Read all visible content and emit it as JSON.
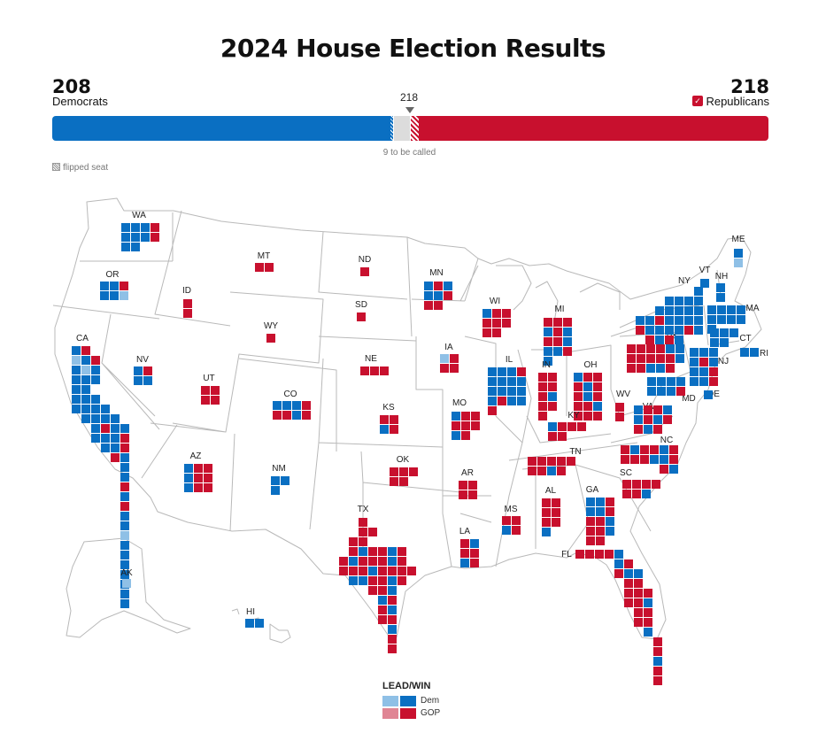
{
  "title": "2024 House Election Results",
  "dem": {
    "seats": "208",
    "label": "Democrats",
    "color": "#0a6fc2",
    "lead_color": "#8fc0e6"
  },
  "gop": {
    "seats": "218",
    "label": "Republicans",
    "color": "#c8102e",
    "lead_color": "#e08594",
    "winner_check": "✓"
  },
  "majority_label": "218",
  "to_be_called": "9 to be called",
  "flipped_note": "flipped seat",
  "legend": {
    "title": "LEAD/WIN",
    "dem": "Dem",
    "gop": "GOP"
  },
  "states": [
    {
      "abbr": "WA",
      "seats": "DDDRDDDRDD"
    },
    {
      "abbr": "OR",
      "seats": "DDRDDL"
    },
    {
      "abbr": "CA",
      "seats": "DRLDRDLDDDDDDDDDDDDDDDDDDRDDDDDRDDRRDDDRDRDDLDDDDDDD"
    },
    {
      "abbr": "NV",
      "seats": "DRDD"
    },
    {
      "abbr": "ID",
      "seats": "RR"
    },
    {
      "abbr": "MT",
      "seats": "RR"
    },
    {
      "abbr": "WY",
      "seats": "R"
    },
    {
      "abbr": "UT",
      "seats": "RRRR"
    },
    {
      "abbr": "CO",
      "seats": "DDDRRRDR"
    },
    {
      "abbr": "AZ",
      "seats": "DRRDRRDRR"
    },
    {
      "abbr": "NM",
      "seats": "DDD"
    },
    {
      "abbr": "ND",
      "seats": "R"
    },
    {
      "abbr": "SD",
      "seats": "R"
    },
    {
      "abbr": "NE",
      "seats": "RRR"
    },
    {
      "abbr": "KS",
      "seats": "RRDR"
    },
    {
      "abbr": "OK",
      "seats": "RRRRR"
    },
    {
      "abbr": "TX",
      "seats": "RRRRRRDRRDRRDRRRDRRRRDRRRRDDRRDRRRDDRRDRRDRR"
    },
    {
      "abbr": "MN",
      "seats": "DRDDDRRR"
    },
    {
      "abbr": "IA",
      "seats": "LRRR"
    },
    {
      "abbr": "MO",
      "seats": "DRRRRRDR"
    },
    {
      "abbr": "AR",
      "seats": "RRRR"
    },
    {
      "abbr": "LA",
      "seats": "RDRRDR"
    },
    {
      "abbr": "WI",
      "seats": "DRRRRRRR"
    },
    {
      "abbr": "IL",
      "seats": "DDDRDDDDDDDDDRDDR"
    },
    {
      "abbr": "MI",
      "seats": "RRRDRDRRDDDRD"
    },
    {
      "abbr": "IN",
      "seats": "RRRRRDRRR"
    },
    {
      "abbr": "OH",
      "seats": "DRRRDRRDRRRDRRR"
    },
    {
      "abbr": "KY",
      "seats": "DRRRRR"
    },
    {
      "abbr": "TN",
      "seats": "RRRRRRRDR"
    },
    {
      "abbr": "MS",
      "seats": "RRDR"
    },
    {
      "abbr": "AL",
      "seats": "RRRRRRD"
    },
    {
      "abbr": "GA",
      "seats": "DDRDDRRRDRRDRR"
    },
    {
      "abbr": "FL",
      "seats": "RRRRDDRRDDRRRRRRRDRRRRDRRDRR"
    },
    {
      "abbr": "SC",
      "seats": "RRRRRRD"
    },
    {
      "abbr": "NC",
      "seats": "RDRRDRRRRDDRDR"
    },
    {
      "abbr": "VA",
      "seats": "DRRDDRDRRDR"
    },
    {
      "abbr": "WV",
      "seats": "RR"
    },
    {
      "abbr": "PA",
      "seats": "RRRRDDRRRRRDRRDDR"
    },
    {
      "abbr": "NY",
      "seats": "DDDDDDDDDDDDRDDDDRDDDDRDRDRD"
    },
    {
      "abbr": "NJ",
      "seats": "DDDDRDDDRDDR"
    },
    {
      "abbr": "MD",
      "seats": "DDDDDDDR"
    },
    {
      "abbr": "DE",
      "seats": "D"
    },
    {
      "abbr": "ME",
      "seats": "DL"
    },
    {
      "abbr": "VT",
      "seats": "D"
    },
    {
      "abbr": "NH",
      "seats": "DD"
    },
    {
      "abbr": "MA",
      "seats": "DDDDDDDDD"
    },
    {
      "abbr": "CT",
      "seats": "DDDDD"
    },
    {
      "abbr": "RI",
      "seats": "DD"
    },
    {
      "abbr": "AK",
      "seats": "L"
    },
    {
      "abbr": "HI",
      "seats": "DD"
    }
  ]
}
